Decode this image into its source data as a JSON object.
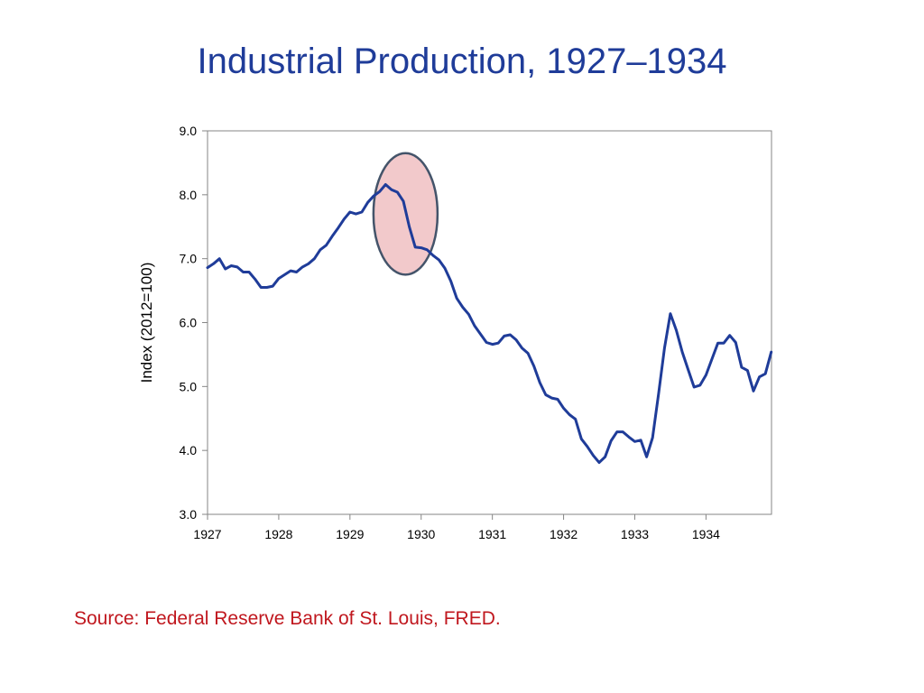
{
  "title": "Industrial Production, 1927–1934",
  "source": "Source:  Federal Reserve Bank of St. Louis, FRED.",
  "colors": {
    "title": "#1f3c99",
    "line": "#1f3c99",
    "source": "#c0171e",
    "highlight_fill": "#f2c9cb",
    "highlight_stroke": "#44546a"
  },
  "chart_data": {
    "type": "line",
    "title": "Industrial Production, 1927–1934",
    "xlabel": "",
    "ylabel": "Index (2012=100)",
    "ylim": [
      3.0,
      9.0
    ],
    "xlim": [
      1927.0,
      1934.92
    ],
    "yticks": [
      "3.0",
      "4.0",
      "5.0",
      "6.0",
      "7.0",
      "8.0",
      "9.0"
    ],
    "xticks": [
      "1927",
      "1928",
      "1929",
      "1930",
      "1931",
      "1932",
      "1933",
      "1934"
    ],
    "grid": false,
    "series": [
      {
        "name": "Industrial Production",
        "x_start": 1927.0,
        "step": 0.0833333,
        "values": [
          6.86,
          6.92,
          7.0,
          6.84,
          6.89,
          6.87,
          6.79,
          6.79,
          6.68,
          6.55,
          6.55,
          6.57,
          6.69,
          6.75,
          6.81,
          6.79,
          6.87,
          6.92,
          7.0,
          7.14,
          7.21,
          7.35,
          7.48,
          7.62,
          7.73,
          7.7,
          7.73,
          7.88,
          7.98,
          8.05,
          8.16,
          8.08,
          8.04,
          7.9,
          7.5,
          7.18,
          7.17,
          7.14,
          7.05,
          6.98,
          6.85,
          6.65,
          6.38,
          6.24,
          6.13,
          5.95,
          5.82,
          5.69,
          5.66,
          5.68,
          5.79,
          5.81,
          5.73,
          5.6,
          5.52,
          5.32,
          5.06,
          4.87,
          4.82,
          4.8,
          4.66,
          4.56,
          4.49,
          4.18,
          4.06,
          3.92,
          3.81,
          3.9,
          4.15,
          4.29,
          4.29,
          4.21,
          4.14,
          4.16,
          3.9,
          4.2,
          4.88,
          5.6,
          6.14,
          5.88,
          5.54,
          5.26,
          4.99,
          5.02,
          5.18,
          5.43,
          5.68,
          5.68,
          5.8,
          5.69,
          5.3,
          5.25,
          4.93,
          5.15,
          5.2,
          5.54
        ]
      }
    ],
    "annotations": [
      {
        "type": "ellipse",
        "label": "",
        "x_center": 1929.78,
        "y_center": 7.7,
        "x_radius": 0.45,
        "y_radius": 0.95
      }
    ]
  }
}
